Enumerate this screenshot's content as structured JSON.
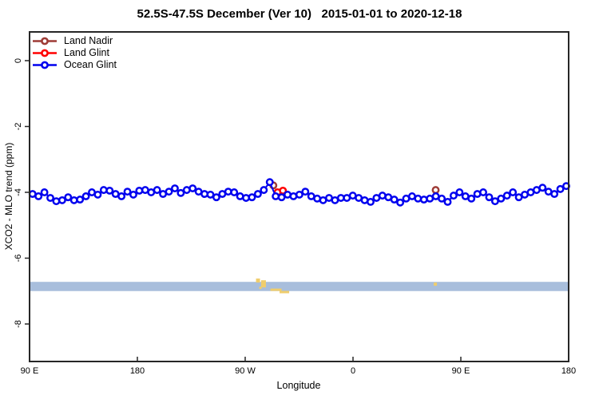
{
  "chart_data": {
    "type": "line",
    "title": "52.5S-47.5S December (Ver 10)   2015-01-01 to 2020-12-18",
    "xlabel": "Longitude",
    "ylabel": "XCO2 - MLO trend (ppm)",
    "x_axis": {
      "range_deg": [
        0,
        450
      ],
      "ticks": [
        {
          "deg": 0,
          "label": "90 E"
        },
        {
          "deg": 90,
          "label": "180"
        },
        {
          "deg": 180,
          "label": "90 W"
        },
        {
          "deg": 270,
          "label": "0"
        },
        {
          "deg": 360,
          "label": "90 E"
        },
        {
          "deg": 450,
          "label": "180"
        }
      ]
    },
    "y_axis": {
      "range_ppm": [
        0.9,
        -9.1
      ],
      "ticks": [
        {
          "ppm": 0,
          "label": "0"
        },
        {
          "ppm": -2,
          "label": "-2"
        },
        {
          "ppm": -4,
          "label": "-4"
        },
        {
          "ppm": -6,
          "label": "-6"
        },
        {
          "ppm": -8,
          "label": "-8"
        }
      ]
    },
    "series": [
      {
        "name": "Land Nadir",
        "color": "#9e3b36",
        "points": [
          {
            "deg": 203.5,
            "ppm": -3.79
          },
          {
            "deg": 339.0,
            "ppm": -3.93
          }
        ]
      },
      {
        "name": "Land Glint",
        "color": "#ff0000",
        "points": [
          {
            "deg": 207.0,
            "ppm": -4.0
          },
          {
            "deg": 211.5,
            "ppm": -3.95
          }
        ]
      },
      {
        "name": "Ocean Glint",
        "color": "#0000ee",
        "draw_line": true,
        "x_start_deg": 2.5,
        "x_step_deg": 4.95,
        "values": [
          -4.05,
          -4.12,
          -4.0,
          -4.17,
          -4.27,
          -4.24,
          -4.15,
          -4.24,
          -4.22,
          -4.12,
          -4.0,
          -4.07,
          -3.93,
          -3.95,
          -4.05,
          -4.12,
          -3.98,
          -4.07,
          -3.95,
          -3.93,
          -4.0,
          -3.93,
          -4.05,
          -3.98,
          -3.88,
          -4.02,
          -3.93,
          -3.88,
          -3.98,
          -4.05,
          -4.07,
          -4.15,
          -4.05,
          -3.98,
          -4.0,
          -4.12,
          -4.17,
          -4.15,
          -4.05,
          -3.93,
          -3.69,
          -4.12,
          -4.15,
          -4.07,
          -4.12,
          -4.07,
          -3.98,
          -4.12,
          -4.19,
          -4.24,
          -4.17,
          -4.24,
          -4.17,
          -4.17,
          -4.1,
          -4.17,
          -4.24,
          -4.29,
          -4.17,
          -4.1,
          -4.15,
          -4.22,
          -4.31,
          -4.19,
          -4.12,
          -4.19,
          -4.22,
          -4.19,
          -4.12,
          -4.19,
          -4.29,
          -4.1,
          -4.0,
          -4.12,
          -4.19,
          -4.05,
          -4.0,
          -4.15,
          -4.27,
          -4.19,
          -4.1,
          -4.0,
          -4.15,
          -4.07,
          -4.0,
          -3.93,
          -3.86,
          -3.98,
          -4.05,
          -3.9,
          -3.81
        ]
      }
    ],
    "band": {
      "ppm_top": -6.72,
      "ppm_bottom": -7.0,
      "color": "#a8bedc"
    },
    "marks": {
      "color": "#efcd6d",
      "items": [
        {
          "deg": 190.7,
          "ppm": -6.68,
          "w": 5,
          "h": 5
        },
        {
          "deg": 195.3,
          "ppm": -6.78,
          "w": 6,
          "h": 9
        },
        {
          "deg": 192.7,
          "ppm": -6.9,
          "w": 3,
          "h": 3
        },
        {
          "deg": 205.7,
          "ppm": -6.96,
          "w": 14,
          "h": 3
        },
        {
          "deg": 212.7,
          "ppm": -7.03,
          "w": 12,
          "h": 3
        },
        {
          "deg": 338.7,
          "ppm": -6.79,
          "w": 4,
          "h": 4
        }
      ]
    }
  }
}
